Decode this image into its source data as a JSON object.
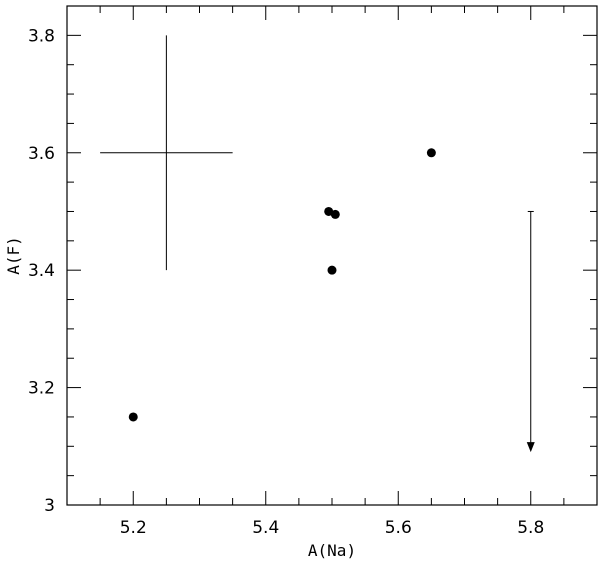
{
  "chart_data": {
    "type": "scatter",
    "xlabel": "A(Na)",
    "ylabel": "A(F)",
    "xlim": [
      5.1,
      5.9
    ],
    "ylim": [
      3.0,
      3.85
    ],
    "x_ticks": [
      {
        "value": 5.2,
        "label": "5.2"
      },
      {
        "value": 5.4,
        "label": "5.4"
      },
      {
        "value": 5.6,
        "label": "5.6"
      },
      {
        "value": 5.8,
        "label": "5.8"
      }
    ],
    "y_ticks": [
      {
        "value": 3.0,
        "label": "3"
      },
      {
        "value": 3.2,
        "label": "3.2"
      },
      {
        "value": 3.4,
        "label": "3.4"
      },
      {
        "value": 3.6,
        "label": "3.6"
      },
      {
        "value": 3.8,
        "label": "3.8"
      }
    ],
    "x_minor_step": 0.05,
    "y_minor_step": 0.05,
    "points": [
      {
        "x": 5.2,
        "y": 3.15
      },
      {
        "x": 5.495,
        "y": 3.5
      },
      {
        "x": 5.505,
        "y": 3.495
      },
      {
        "x": 5.5,
        "y": 3.4
      },
      {
        "x": 5.65,
        "y": 3.6
      }
    ],
    "upper_limits": [
      {
        "x": 5.8,
        "y_from": 3.5,
        "y_to": 3.09
      }
    ],
    "error_bar": {
      "x": 5.25,
      "y": 3.6,
      "x_err": 0.1,
      "y_err": 0.2
    },
    "grid": false,
    "legend": "none"
  }
}
